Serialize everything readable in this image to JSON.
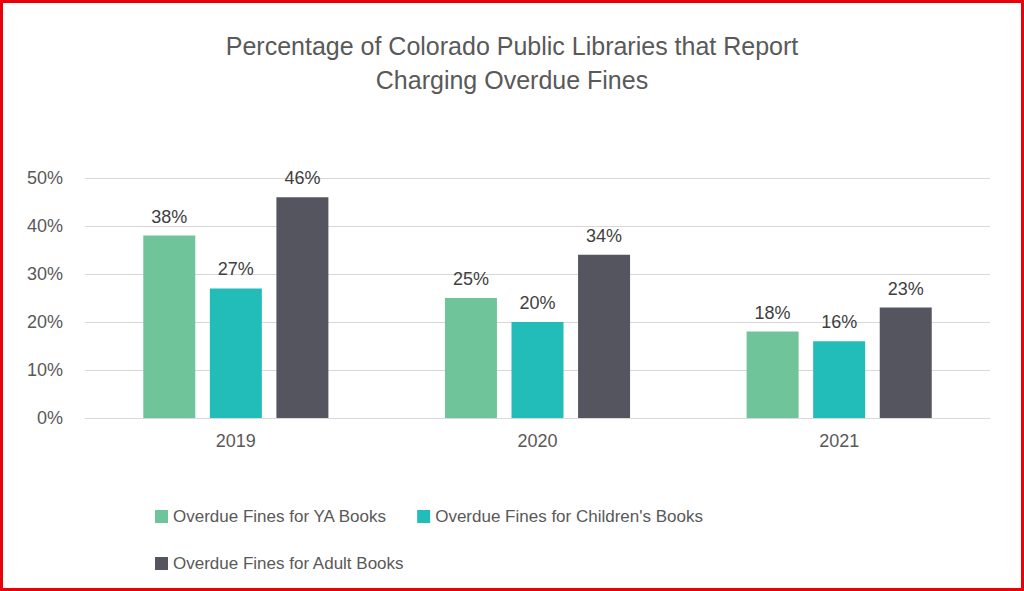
{
  "chart_data": {
    "type": "bar",
    "title": "Percentage of Colorado Public Libraries that Report\nCharging Overdue Fines",
    "categories": [
      "2019",
      "2020",
      "2021"
    ],
    "series": [
      {
        "name": "Overdue Fines for YA Books",
        "color": "#70c49a",
        "values": [
          38,
          25,
          18
        ],
        "value_labels": [
          "38%",
          "25%",
          "18%"
        ]
      },
      {
        "name": "Overdue Fines for Children's Books",
        "color": "#22bcb9",
        "values": [
          27,
          20,
          16
        ],
        "value_labels": [
          "27%",
          "20%",
          "16%"
        ]
      },
      {
        "name": "Overdue Fines for Adult Books",
        "color": "#55555f",
        "values": [
          46,
          34,
          23
        ],
        "value_labels": [
          "46%",
          "34%",
          "23%"
        ]
      }
    ],
    "ylim": [
      0,
      50
    ],
    "yticks": [
      {
        "value": 0,
        "label": "0%"
      },
      {
        "value": 10,
        "label": "10%"
      },
      {
        "value": 20,
        "label": "20%"
      },
      {
        "value": 30,
        "label": "30%"
      },
      {
        "value": 40,
        "label": "40%"
      },
      {
        "value": 50,
        "label": "50%"
      }
    ],
    "grid": true,
    "legend": "bottom",
    "data_labels": true
  }
}
